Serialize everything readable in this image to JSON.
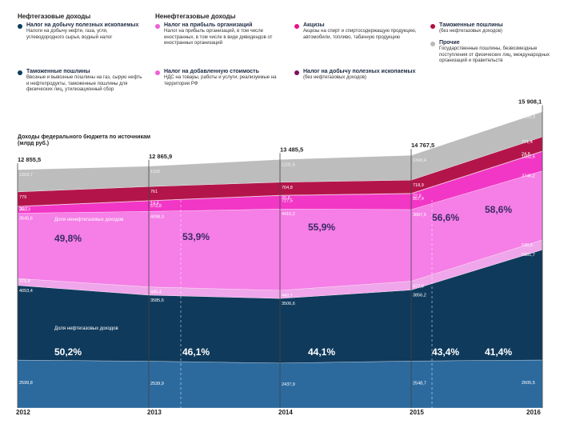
{
  "headers": {
    "oil_gas": "Нефтегазовые доходы",
    "non_oil_gas": "Ненефтегазовые доходы"
  },
  "legend": [
    {
      "key": "mineral_tax",
      "title": "Налог на добычу полезных ископаемых",
      "desc": "Налоги на добычу нефти, газа, угля, углеводородного сырья, водный налог",
      "color": "#0d3d5e"
    },
    {
      "key": "customs_oil",
      "title": "Таможенные пошлины",
      "desc": "Ввозные и вывозные пошлины на газ, сырую нефть и нефтепродукты, таможенные пошлины для физических лиц, утилизационный сбор",
      "color": "#0d3d5e"
    },
    {
      "key": "profit_tax",
      "title": "Налог на прибыль организаций",
      "desc": "Налог на прибыль организаций, в том числе иностранных, в том числе в виде дивидендов от иностранных организаций",
      "color": "#f060d8"
    },
    {
      "key": "vat",
      "title": "Налог на добавленную стоимость",
      "desc": "НДС на товары, работы и услуги, реализуемые на территории РФ",
      "color": "#f060d8"
    },
    {
      "key": "excise",
      "title": "Акцизы",
      "desc": "Акцизы на спирт и спиртосодержащую продукцию, автомобили, топливо, табачную продукцию",
      "color": "#e8128a"
    },
    {
      "key": "mineral_tax_non",
      "title": "Налог на добычу полезных ископаемых",
      "desc": "(без нефтегазовых доходов)",
      "color": "#7a1060"
    },
    {
      "key": "customs_non",
      "title": "Таможенные пошлины",
      "desc": "(без нефтегазовых доходов)",
      "color": "#b0123c"
    },
    {
      "key": "other",
      "title": "Прочие",
      "desc": "Государственные пошлины, безвозмездные поступления от физических лиц, международных организаций и правительств",
      "color": "#b9b9b9"
    }
  ],
  "chart_data": {
    "type": "area",
    "title": "Доходы федерального бюджета по источникам (млрд руб.)",
    "categories": [
      "2012",
      "2013",
      "2014",
      "2015",
      "2016"
    ],
    "totals": [
      "12 855,5",
      "12 865,9",
      "13 485,5",
      "14 767,5",
      "15 908,1"
    ],
    "ylim": [
      0,
      16500
    ],
    "series": [
      {
        "name": "Налог на добычу полезных ископаемых",
        "color": "#2c6a9e",
        "values": [
          2599.8,
          2539.9,
          2437.9,
          2548.7,
          2605.5
        ],
        "labels": [
          "2599,8",
          "2539,9",
          "2437,9",
          "2548,7",
          "2605,5"
        ]
      },
      {
        "name": "Таможенные пошлины (нефтегазовые)",
        "color": "#0f3a5c",
        "values": [
          4053.4,
          3585.6,
          3506.6,
          3856.2,
          5981.7
        ],
        "labels": [
          "4053,4",
          "3585,6",
          "3506,6",
          "3856,2",
          "5981,7"
        ]
      },
      {
        "name": "Налог на прибыль организаций",
        "color": "#f0a6ea",
        "values": [
          375.8,
          445.4,
          440.7,
          477.9,
          536.6
        ],
        "labels": [
          "375,8",
          "445,4",
          "440,7",
          "477,9",
          "536,6"
        ]
      },
      {
        "name": "Налог на добавленную стоимость",
        "color": "#f57fe6",
        "values": [
          3545.6,
          4098.3,
          4416.2,
          3887.5,
          3745.2
        ],
        "labels": [
          "3545,6",
          "4098,3",
          "4416,2",
          "3887,5",
          "3745,2"
        ]
      },
      {
        "name": "Акцизы",
        "color": "#f236c6",
        "values": [
          355.3,
          573.8,
          727.5,
          857.4,
          1052.6
        ],
        "labels": [
          "355,3",
          "573,8",
          "727,5",
          "857,4",
          "1052,6"
        ]
      },
      {
        "name": "Налог на добычу полезных ископаемых (без нефтегазовых)",
        "color": "#c0237a",
        "values": [
          20.7,
          14.4,
          20.8,
          22.8,
          24.8
        ],
        "labels": [
          "20,7",
          "14,4",
          "20,8",
          "22,8",
          "24,8"
        ]
      },
      {
        "name": "Таможенные пошлины (без нефтегазовых)",
        "color": "#b3154a",
        "values": [
          779,
          761,
          704.8,
          718.9,
          771.4
        ],
        "labels": [
          "779",
          "761",
          "704,8",
          "718,9",
          "771,4"
        ]
      },
      {
        "name": "Прочие",
        "color": "#bdbdbd",
        "values": [
          1203.7,
          1103,
          1231.5,
          1343.4,
          1363.3
        ],
        "labels": [
          "1203,7",
          "1103",
          "1231,5",
          "1343,4",
          "1363,3"
        ]
      }
    ],
    "share_non_oil_label": "Доля ненефтегазовых доходов",
    "share_oil_label": "Доля нефтегазовых доходов",
    "share_non_oil": [
      "49,8%",
      "53,9%",
      "55,9%",
      "56,6%",
      "58,6%"
    ],
    "share_oil": [
      "50,2%",
      "46,1%",
      "44,1%",
      "43,4%",
      "41,4%"
    ]
  }
}
